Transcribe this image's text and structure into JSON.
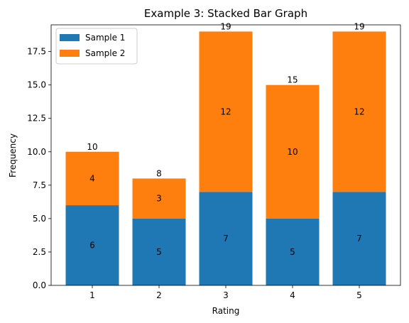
{
  "chart_data": {
    "type": "bar",
    "stacked": true,
    "title": "Example 3: Stacked Bar Graph",
    "xlabel": "Rating",
    "ylabel": "Frequency",
    "categories": [
      "1",
      "2",
      "3",
      "4",
      "5"
    ],
    "series": [
      {
        "name": "Sample 1",
        "values": [
          6,
          5,
          7,
          5,
          7
        ],
        "color": "#1f77b4"
      },
      {
        "name": "Sample 2",
        "values": [
          4,
          3,
          12,
          10,
          12
        ],
        "color": "#ff7f0e"
      }
    ],
    "totals": [
      10,
      8,
      19,
      15,
      19
    ],
    "ylim": [
      0,
      19.5
    ],
    "yticks": [
      "0.0",
      "2.5",
      "5.0",
      "7.5",
      "10.0",
      "12.5",
      "15.0",
      "17.5"
    ],
    "grid": false,
    "legend_position": "top-left"
  }
}
